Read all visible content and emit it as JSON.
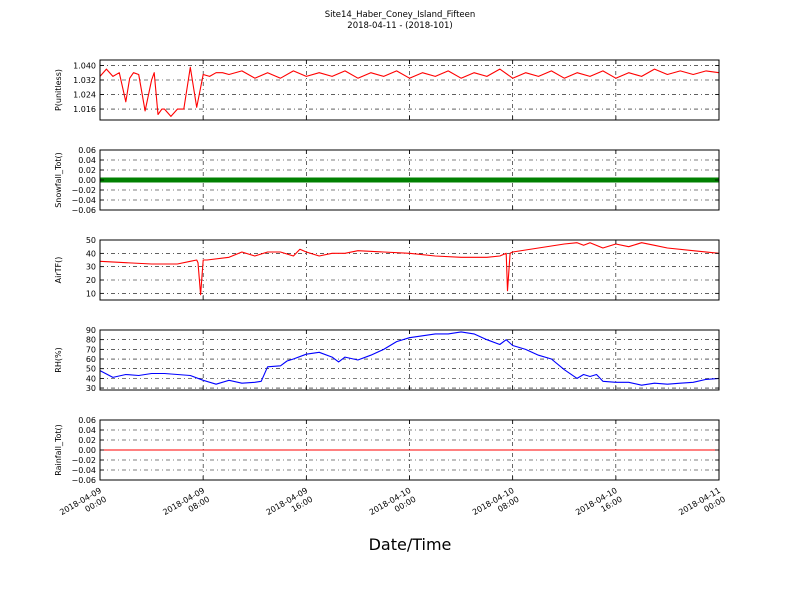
{
  "header": {
    "title": "Site14_Haber_Coney_Island_Fifteen",
    "subtitle": "2018-04-11 - (2018-101)"
  },
  "chart_data": {
    "type": "line",
    "xlabel": "Date/Time",
    "x_ticks": [
      {
        "label": [
          "2018-04-09",
          "00:00"
        ],
        "hours": 0
      },
      {
        "label": [
          "2018-04-09",
          "08:00"
        ],
        "hours": 8
      },
      {
        "label": [
          "2018-04-09",
          "16:00"
        ],
        "hours": 16
      },
      {
        "label": [
          "2018-04-10",
          "00:00"
        ],
        "hours": 24
      },
      {
        "label": [
          "2018-04-10",
          "08:00"
        ],
        "hours": 32
      },
      {
        "label": [
          "2018-04-10",
          "16:00"
        ],
        "hours": 40
      },
      {
        "label": [
          "2018-04-11",
          "00:00"
        ],
        "hours": 48
      }
    ],
    "xlim_hours": [
      0,
      48
    ],
    "panels": [
      {
        "ylabel": "P(unitless)",
        "ylim": [
          1.01,
          1.043
        ],
        "yticks": [
          1.016,
          1.024,
          1.032,
          1.04
        ],
        "ytick_labels": [
          "1.016",
          "1.024",
          "1.032",
          "1.040"
        ],
        "color": "#ff0000",
        "series_style": "line",
        "x": [
          0,
          0.5,
          1,
          1.5,
          2,
          2.3,
          2.6,
          3,
          3.5,
          4,
          4.2,
          4.5,
          4.8,
          5,
          5.5,
          6,
          6.5,
          7,
          7.5,
          8,
          8.5,
          9,
          9.5,
          10,
          11,
          12,
          13,
          14,
          15,
          16,
          17,
          18,
          19,
          20,
          21,
          22,
          23,
          24,
          25,
          26,
          27,
          28,
          29,
          30,
          31,
          32,
          33,
          34,
          35,
          36,
          37,
          38,
          39,
          40,
          41,
          42,
          43,
          44,
          45,
          46,
          47,
          48
        ],
        "y": [
          1.034,
          1.038,
          1.034,
          1.036,
          1.02,
          1.033,
          1.036,
          1.035,
          1.015,
          1.032,
          1.036,
          1.013,
          1.016,
          1.016,
          1.012,
          1.016,
          1.016,
          1.039,
          1.017,
          1.035,
          1.034,
          1.036,
          1.036,
          1.035,
          1.037,
          1.033,
          1.036,
          1.033,
          1.037,
          1.034,
          1.036,
          1.034,
          1.037,
          1.033,
          1.036,
          1.034,
          1.037,
          1.033,
          1.036,
          1.034,
          1.037,
          1.033,
          1.036,
          1.034,
          1.038,
          1.033,
          1.036,
          1.034,
          1.037,
          1.033,
          1.036,
          1.034,
          1.037,
          1.033,
          1.036,
          1.034,
          1.038,
          1.035,
          1.037,
          1.035,
          1.037,
          1.036
        ]
      },
      {
        "ylabel": "Snowfall_Tot()",
        "ylim": [
          -0.06,
          0.06
        ],
        "yticks": [
          -0.06,
          -0.04,
          -0.02,
          0.0,
          0.02,
          0.04,
          0.06
        ],
        "ytick_labels": [
          "−0.06",
          "−0.04",
          "−0.02",
          "0.00",
          "0.02",
          "0.04",
          "0.06"
        ],
        "color": "#008000",
        "series_style": "markers",
        "x": [
          0,
          48
        ],
        "y": [
          0.0,
          0.0
        ]
      },
      {
        "ylabel": "AirTF()",
        "ylim": [
          5,
          50
        ],
        "yticks": [
          10,
          20,
          30,
          40,
          50
        ],
        "ytick_labels": [
          "10",
          "20",
          "30",
          "40",
          "50"
        ],
        "color": "#ff0000",
        "series_style": "line",
        "x": [
          0,
          2,
          4,
          6,
          7,
          7.5,
          7.6,
          7.8,
          8,
          8.3,
          10,
          11,
          12,
          13,
          14,
          15,
          15.5,
          16,
          17,
          18,
          19,
          20,
          22,
          24,
          26,
          28,
          30,
          31,
          31.5,
          31.6,
          31.8,
          32,
          34,
          36,
          37,
          37.5,
          38,
          39,
          40,
          41,
          42,
          43,
          44,
          46,
          48
        ],
        "y": [
          34,
          33,
          32,
          32,
          34,
          35,
          33,
          9,
          35,
          35,
          37,
          41,
          38,
          41,
          41,
          38,
          43,
          41,
          38,
          40,
          40,
          42,
          41,
          40,
          38,
          37,
          37,
          38,
          40,
          12,
          40,
          41,
          44,
          47,
          48,
          46,
          48,
          44,
          47,
          45,
          48,
          46,
          44,
          42,
          40
        ]
      },
      {
        "ylabel": "RH(%)",
        "ylim": [
          28,
          90
        ],
        "yticks": [
          30,
          40,
          50,
          60,
          70,
          80,
          90
        ],
        "ytick_labels": [
          "30",
          "40",
          "50",
          "60",
          "70",
          "80",
          "90"
        ],
        "color": "#0000ff",
        "series_style": "line",
        "x": [
          0,
          1,
          2,
          3,
          4,
          5,
          6,
          7,
          8,
          9,
          10,
          11,
          12,
          12.5,
          13,
          14,
          14.5,
          15,
          16,
          17,
          18,
          18.5,
          19,
          20,
          21,
          22,
          23,
          24,
          25,
          26,
          27,
          28,
          29,
          30,
          31,
          31.5,
          32,
          33,
          34,
          35,
          36,
          37,
          37.5,
          38,
          38.5,
          39,
          40,
          41,
          42,
          43,
          44,
          45,
          46,
          47,
          48
        ],
        "y": [
          48,
          41,
          44,
          43,
          45,
          45,
          44,
          43,
          38,
          34,
          38,
          35,
          36,
          37,
          52,
          53,
          58,
          60,
          65,
          67,
          62,
          57,
          62,
          59,
          64,
          70,
          78,
          82,
          84,
          86,
          86,
          88,
          86,
          80,
          75,
          80,
          74,
          70,
          64,
          60,
          49,
          40,
          44,
          42,
          44,
          37,
          36,
          36,
          33,
          35,
          34,
          35,
          36,
          39,
          40
        ]
      },
      {
        "ylabel": "Rainfall_Tot()",
        "ylim": [
          -0.06,
          0.06
        ],
        "yticks": [
          -0.06,
          -0.04,
          -0.02,
          0.0,
          0.02,
          0.04,
          0.06
        ],
        "ytick_labels": [
          "−0.06",
          "−0.04",
          "−0.02",
          "0.00",
          "0.02",
          "0.04",
          "0.06"
        ],
        "color": "#ff0000",
        "series_style": "line",
        "x": [
          0,
          48
        ],
        "y": [
          0.0,
          0.0
        ]
      }
    ]
  }
}
